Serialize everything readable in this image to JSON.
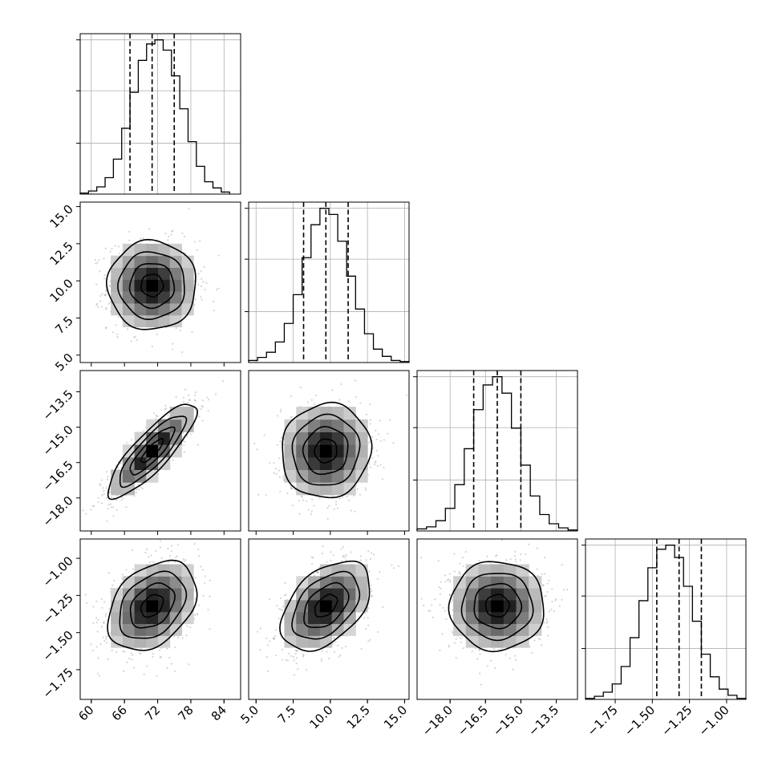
{
  "chart_data": {
    "type": "corner",
    "title": "",
    "parameters": [
      {
        "label": "",
        "median": 71.0,
        "quantiles": [
          67.0,
          71.0,
          75.0
        ],
        "range": [
          58,
          87
        ],
        "ticks": [
          60,
          66,
          72,
          78,
          84
        ],
        "tick_labels": [
          "60",
          "66",
          "72",
          "78",
          "84"
        ]
      },
      {
        "label": "",
        "median": 9.7,
        "quantiles": [
          8.2,
          9.7,
          11.2
        ],
        "range": [
          4.5,
          15.3
        ],
        "ticks": [
          5.0,
          7.5,
          10.0,
          12.5,
          15.0
        ],
        "tick_labels": [
          "5.0",
          "7.5",
          "10.0",
          "12.5",
          "15.0"
        ]
      },
      {
        "label": "",
        "median": -16.0,
        "quantiles": [
          -17.0,
          -16.0,
          -15.0
        ],
        "range": [
          -19.4,
          -12.6
        ],
        "ticks": [
          -18.0,
          -16.5,
          -15.0,
          -13.5
        ],
        "tick_labels": [
          "−18.0",
          "−16.5",
          "−15.0",
          "−13.5"
        ]
      },
      {
        "label": "",
        "median": -1.32,
        "quantiles": [
          -1.47,
          -1.32,
          -1.17
        ],
        "range": [
          -1.95,
          -0.87
        ],
        "ticks": [
          -1.75,
          -1.5,
          -1.25,
          -1.0
        ],
        "tick_labels": [
          "−1.75",
          "−1.50",
          "−1.25",
          "−1.00"
        ]
      }
    ],
    "histograms": [
      {
        "param": 0,
        "bins": [
          58.0,
          59.5,
          61.0,
          62.5,
          64.0,
          65.5,
          67.0,
          68.5,
          70.0,
          71.5,
          73.0,
          74.5,
          76.0,
          77.5,
          79.0,
          80.5,
          82.0,
          83.5,
          85.0
        ],
        "counts": [
          1,
          3,
          7,
          16,
          34,
          64,
          99,
          130,
          146,
          150,
          140,
          115,
          83,
          51,
          27,
          12,
          6,
          2
        ]
      },
      {
        "param": 1,
        "bins": [
          4.5,
          5.1,
          5.7,
          6.3,
          6.9,
          7.5,
          8.1,
          8.7,
          9.3,
          9.9,
          10.5,
          11.1,
          11.7,
          12.3,
          12.9,
          13.5,
          14.1,
          14.7,
          15.3
        ],
        "counts": [
          2,
          5,
          10,
          20,
          38,
          66,
          102,
          134,
          150,
          144,
          118,
          84,
          52,
          28,
          13,
          6,
          2,
          1
        ]
      },
      {
        "param": 2,
        "bins": [
          -19.4,
          -19.0,
          -18.6,
          -18.2,
          -17.8,
          -17.4,
          -17.0,
          -16.6,
          -16.2,
          -15.8,
          -15.4,
          -15.0,
          -14.6,
          -14.2,
          -13.8,
          -13.4,
          -13.0,
          -12.6
        ],
        "counts": [
          2,
          4,
          10,
          22,
          45,
          80,
          118,
          142,
          150,
          134,
          100,
          64,
          34,
          16,
          7,
          3,
          1
        ]
      },
      {
        "param": 3,
        "bins": [
          -1.95,
          -1.89,
          -1.83,
          -1.77,
          -1.71,
          -1.65,
          -1.59,
          -1.53,
          -1.47,
          -1.41,
          -1.35,
          -1.29,
          -1.23,
          -1.17,
          -1.11,
          -1.05,
          -0.99,
          -0.93,
          -0.87
        ],
        "counts": [
          1,
          3,
          7,
          15,
          32,
          60,
          96,
          128,
          146,
          150,
          138,
          110,
          76,
          44,
          22,
          10,
          4,
          1
        ]
      }
    ],
    "pairs": [
      {
        "x": 0,
        "y": 1,
        "correlation": 0.0
      },
      {
        "x": 0,
        "y": 2,
        "correlation": 0.85
      },
      {
        "x": 1,
        "y": 2,
        "correlation": 0.05
      },
      {
        "x": 0,
        "y": 3,
        "correlation": 0.35
      },
      {
        "x": 1,
        "y": 3,
        "correlation": 0.45
      },
      {
        "x": 2,
        "y": 3,
        "correlation": 0.0
      }
    ],
    "contour_levels_sigma": [
      0.5,
      1.0,
      1.5,
      2.0
    ],
    "grid": true,
    "legend": "none",
    "colors": {
      "hist": "#000000",
      "points": "#888888",
      "density": "#000000",
      "grid": "#b0b0b0"
    }
  }
}
